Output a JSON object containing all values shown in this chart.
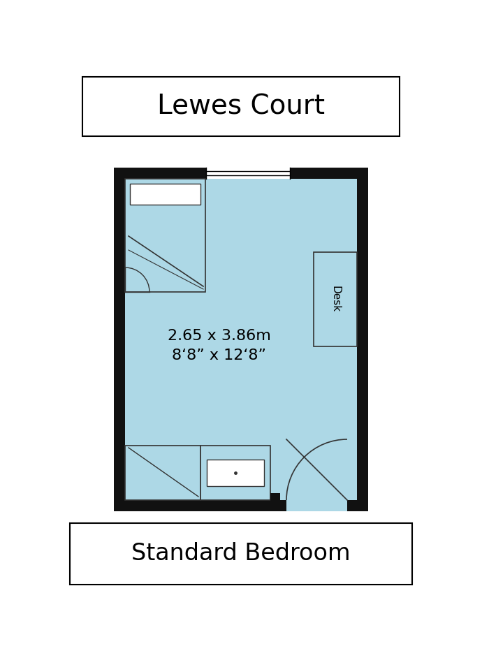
{
  "title": "Lewes Court",
  "subtitle": "Standard Bedroom",
  "dim_metric": "2.65 x 3.86m",
  "dim_imperial": "8‘8” x 12‘8”",
  "bg_color": "#ffffff",
  "room_fill": "#add8e6",
  "wall_color": "#111111",
  "inner_line_color": "#333333",
  "title_fontsize": 28,
  "subtitle_fontsize": 24,
  "dim_fontsize": 16
}
